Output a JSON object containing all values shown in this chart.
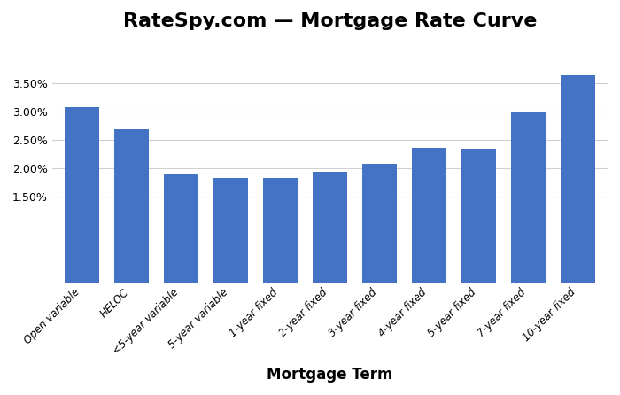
{
  "title": "RateSpy.com — Mortgage Rate Curve",
  "categories": [
    "Open variable",
    "HELOC",
    "<5-year variable",
    "5-year variable",
    "1-year fixed",
    "2-year fixed",
    "3-year fixed",
    "4-year fixed",
    "5-year fixed",
    "7-year fixed",
    "10-year fixed"
  ],
  "values": [
    0.0308,
    0.027,
    0.019,
    0.0183,
    0.0183,
    0.0195,
    0.0208,
    0.0237,
    0.0235,
    0.03,
    0.0365
  ],
  "bar_color": "#4472c4",
  "xlabel": "Mortgage Term",
  "xlabel_fontsize": 12,
  "ylim": [
    0.0,
    0.042
  ],
  "yticks": [
    0.015,
    0.02,
    0.025,
    0.03,
    0.035
  ],
  "background_color": "#ffffff",
  "title_fontsize": 16,
  "grid_color": "#d0d0d0",
  "title_fontweight": "bold"
}
